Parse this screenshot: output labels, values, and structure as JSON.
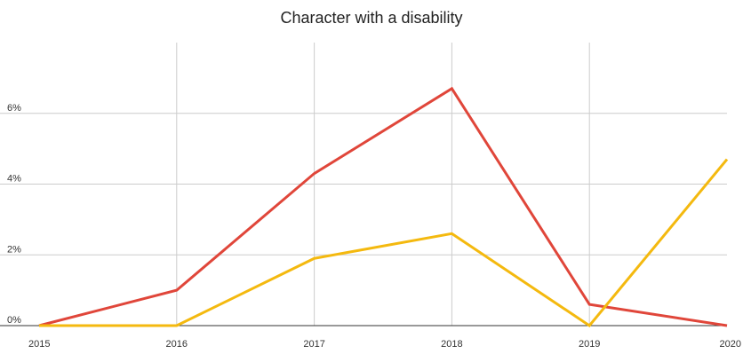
{
  "chart_data": {
    "type": "line",
    "title": "Character with a disability",
    "xlabel": "",
    "ylabel": "",
    "x": [
      "2015",
      "2016",
      "2017",
      "2018",
      "2019",
      "2020"
    ],
    "ylim": [
      0,
      8
    ],
    "y_ticks": [
      {
        "value": 0,
        "label": "0%"
      },
      {
        "value": 2,
        "label": "2%"
      },
      {
        "value": 4,
        "label": "4%"
      },
      {
        "value": 6,
        "label": "6%"
      }
    ],
    "grid": true,
    "legend": "none",
    "series": [
      {
        "color": "#e0463a",
        "values": [
          0,
          1.0,
          4.3,
          6.7,
          0.6,
          0
        ]
      },
      {
        "color": "#f4b90f",
        "values": [
          0,
          0,
          1.9,
          2.6,
          0,
          4.7
        ]
      }
    ]
  }
}
